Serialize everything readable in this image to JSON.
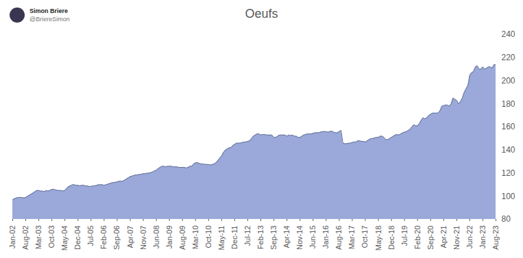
{
  "chart_data": {
    "type": "area",
    "title": "Oeufs",
    "annotations": [
      "Simon Briere",
      "@BriereSimon"
    ],
    "color": "#8fa0d5",
    "grid": false,
    "ylim": [
      80,
      240
    ],
    "yticks": [
      80,
      100,
      120,
      140,
      160,
      180,
      200,
      220,
      240
    ],
    "categories": [
      "Jan-02",
      null,
      null,
      null,
      null,
      null,
      null,
      "Aug-02",
      null,
      null,
      null,
      null,
      null,
      null,
      "Mar-03",
      null,
      null,
      null,
      null,
      null,
      null,
      "Oct-03",
      null,
      null,
      null,
      null,
      null,
      null,
      "May-04",
      null,
      null,
      null,
      null,
      null,
      null,
      "Dec-04",
      null,
      null,
      null,
      null,
      null,
      null,
      "Jul-05",
      null,
      null,
      null,
      null,
      null,
      null,
      "Feb-06",
      null,
      null,
      null,
      null,
      null,
      null,
      "Sep-06",
      null,
      null,
      null,
      null,
      null,
      null,
      "Apr-07",
      null,
      null,
      null,
      null,
      null,
      null,
      "Nov-07",
      null,
      null,
      null,
      null,
      null,
      null,
      "Jun-08",
      null,
      null,
      null,
      null,
      null,
      null,
      "Jan-09",
      null,
      null,
      null,
      null,
      null,
      null,
      "Aug-09",
      null,
      null,
      null,
      null,
      null,
      null,
      "Mar-10",
      null,
      null,
      null,
      null,
      null,
      null,
      "Oct-10",
      null,
      null,
      null,
      null,
      null,
      null,
      "May-11",
      null,
      null,
      null,
      null,
      null,
      null,
      "Dec-11",
      null,
      null,
      null,
      null,
      null,
      null,
      "Jul-12",
      null,
      null,
      null,
      null,
      null,
      null,
      "Feb-13",
      null,
      null,
      null,
      null,
      null,
      null,
      "Sep-13",
      null,
      null,
      null,
      null,
      null,
      null,
      "Apr-14",
      null,
      null,
      null,
      null,
      null,
      null,
      "Nov-14",
      null,
      null,
      null,
      null,
      null,
      null,
      "Jun-15",
      null,
      null,
      null,
      null,
      null,
      null,
      "Jan-16",
      null,
      null,
      null,
      null,
      null,
      null,
      "Aug-16",
      null,
      null,
      null,
      null,
      null,
      null,
      "Mar-17",
      null,
      null,
      null,
      null,
      null,
      null,
      "Oct-17",
      null,
      null,
      null,
      null,
      null,
      null,
      "May-18",
      null,
      null,
      null,
      null,
      null,
      null,
      "Dec-18",
      null,
      null,
      null,
      null,
      null,
      null,
      "Jul-19",
      null,
      null,
      null,
      null,
      null,
      null,
      "Feb-20",
      null,
      null,
      null,
      null,
      null,
      null,
      "Sep-20",
      null,
      null,
      null,
      null,
      null,
      null,
      "Apr-21",
      null,
      null,
      null,
      null,
      null,
      null,
      "Nov-21",
      null,
      null,
      null,
      null,
      null,
      null,
      "Jun-22",
      null,
      null,
      null,
      null,
      null,
      null,
      "Jan-23",
      null,
      null,
      null,
      null,
      null,
      null,
      "Aug-23"
    ],
    "values": [
      97,
      98,
      98.5,
      99,
      99,
      99,
      98.5,
      99,
      100,
      101,
      102,
      103,
      104,
      105,
      105,
      104.5,
      104.5,
      104,
      105,
      104.5,
      105,
      106,
      106,
      105.5,
      105,
      105,
      105,
      104.5,
      105,
      107,
      108.5,
      109,
      110,
      110,
      109.5,
      109.5,
      109,
      109.5,
      109.5,
      109,
      109,
      108.5,
      108.5,
      109,
      109,
      109.5,
      110,
      110,
      110,
      109.5,
      110,
      110.5,
      111,
      111.5,
      112,
      112,
      112.5,
      113,
      113,
      113,
      114,
      115,
      116,
      117,
      117.5,
      118,
      118.5,
      118.5,
      119,
      119,
      119.5,
      119.5,
      120,
      120,
      120.5,
      121,
      122,
      122.5,
      124,
      125,
      126,
      126,
      125.5,
      126,
      126,
      126,
      125.5,
      125.5,
      125.5,
      125,
      125,
      125,
      125,
      124.5,
      125,
      126,
      126,
      128,
      129,
      129,
      128.5,
      128,
      128,
      127.5,
      127.5,
      127.5,
      127,
      127.5,
      128,
      129,
      131,
      133,
      135,
      138,
      140,
      141,
      142,
      142,
      144,
      145,
      146,
      146,
      146,
      146.5,
      147,
      147,
      147.5,
      148,
      150,
      152,
      153,
      154,
      154,
      153,
      153.5,
      153.5,
      153,
      153,
      153,
      153,
      151,
      151,
      152,
      153,
      153,
      153,
      153,
      152,
      153,
      152.5,
      153,
      152,
      152,
      151,
      151,
      152,
      153,
      153.5,
      154,
      154,
      154,
      154.5,
      155,
      155,
      155,
      155.5,
      156,
      156,
      156,
      155.5,
      156,
      156.5,
      155.5,
      155,
      155,
      156,
      157,
      146,
      145.5,
      145.5,
      146,
      146,
      146.5,
      147,
      147,
      148,
      148,
      147.5,
      147.5,
      147,
      148,
      149,
      150,
      150,
      150.5,
      151,
      151,
      152,
      152,
      151,
      149,
      149,
      150,
      151,
      152,
      153,
      153.5,
      153,
      154,
      155,
      155.5,
      156,
      157,
      158,
      160,
      162,
      161,
      161,
      163,
      166,
      168,
      167,
      168,
      170,
      171,
      172,
      172,
      172,
      172,
      174,
      178,
      178.5,
      179,
      179,
      178,
      180,
      185,
      184,
      183,
      180,
      182,
      185,
      190,
      193,
      196,
      205,
      207,
      208,
      212,
      213,
      210,
      210,
      212,
      210,
      211,
      212,
      212,
      211,
      214,
      214
    ]
  }
}
